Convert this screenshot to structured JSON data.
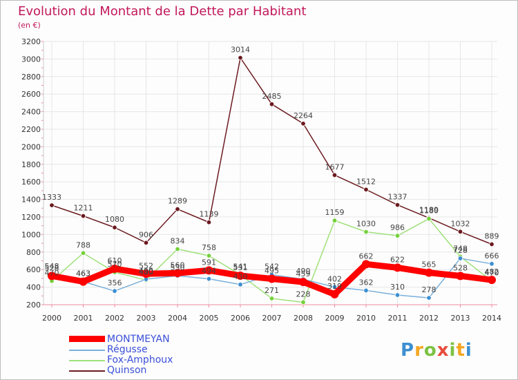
{
  "header": {
    "title": "Evolution du Montant de la Dette par Habitant",
    "subtitle": "(en €)"
  },
  "colors": {
    "title": "#c2185b",
    "legend_text": "#3a4fd8",
    "grid": "#e6e6e6",
    "axis": "#f08aa0"
  },
  "chart_data": {
    "type": "line",
    "title": "Evolution du Montant de la Dette par Habitant",
    "subtitle": "(en €)",
    "xlabel": "",
    "ylabel": "",
    "x": [
      "2000",
      "2001",
      "2002",
      "2003",
      "2004",
      "2005",
      "2006",
      "2007",
      "2008",
      "2009",
      "2010",
      "2011",
      "2012",
      "2013",
      "2014"
    ],
    "y_ticks": [
      "200",
      "400",
      "600",
      "800",
      "1000",
      "1200",
      "1400",
      "1600",
      "1800",
      "2000",
      "2200",
      "2400",
      "2600",
      "2800",
      "3000",
      "3200"
    ],
    "ylim": [
      200,
      3200
    ],
    "grid": true,
    "legend_position": "bottom-left",
    "series": [
      {
        "name": "Quinson",
        "color": "#6b1a1f",
        "point_color": "#6b1a1f",
        "values": [
          1333,
          1211,
          1080,
          906,
          1289,
          1139,
          3014,
          2485,
          2264,
          1677,
          1512,
          1337,
          1189,
          1032,
          889
        ],
        "labels": [
          "1333",
          "1211",
          "1080",
          "906",
          "1289",
          "1139",
          "3014",
          "2485",
          "2264",
          "1677",
          "1512",
          "1337",
          "1189",
          "1032",
          "889"
        ]
      },
      {
        "name": "Fox-Amphoux",
        "color": "#9fe07a",
        "point_color": "#74d13a",
        "values": [
          470,
          788,
          570,
          480,
          834,
          758,
          541,
          271,
          228,
          1159,
          1030,
          986,
          1180,
          748,
          470
        ],
        "labels": [
          "470",
          "788",
          "570",
          "480",
          "834",
          "758",
          "541",
          "271",
          "228",
          "1159",
          "1030",
          "986",
          "1180",
          "748",
          "470"
        ]
      },
      {
        "name": "Régusse",
        "color": "#7ab0db",
        "point_color": "#3d8fd1",
        "values": [
          548,
          463,
          356,
          490,
          530,
          494,
          430,
          542,
          490,
          402,
          362,
          310,
          278,
          728,
          666
        ],
        "labels": [
          "548",
          "463",
          "356",
          "490",
          "530",
          "494",
          "430",
          "542",
          "490",
          "402",
          "362",
          "310",
          "278",
          "728",
          "666"
        ]
      },
      {
        "name": "MONTMEYAN",
        "color": "#ff0000",
        "point_color": "#ff0000",
        "values": [
          528,
          463,
          610,
          552,
          560,
          591,
          531,
          495,
          459,
          319,
          662,
          622,
          565,
          528,
          482
        ],
        "labels": [
          "528",
          "463",
          "610",
          "552",
          "560",
          "591",
          "531",
          "495",
          "459",
          "319",
          "662",
          "622",
          "565",
          "528",
          "482"
        ]
      }
    ],
    "legend": [
      "MONTMEYAN",
      "Régusse",
      "Fox-Amphoux",
      "Quinson"
    ]
  },
  "legend": {
    "items": [
      {
        "label": "MONTMEYAN",
        "color": "#ff0000"
      },
      {
        "label": "Régusse",
        "color": "#7ab0db"
      },
      {
        "label": "Fox-Amphoux",
        "color": "#9fe07a"
      },
      {
        "label": "Quinson",
        "color": "#6b1a1f"
      }
    ]
  },
  "logo": {
    "text": "Proxiti",
    "letter_colors": [
      "#3d8fd1",
      "#f5a623",
      "#7cc242",
      "#e84c3d",
      "#7cc242",
      "#f5a623",
      "#3d8fd1"
    ]
  }
}
